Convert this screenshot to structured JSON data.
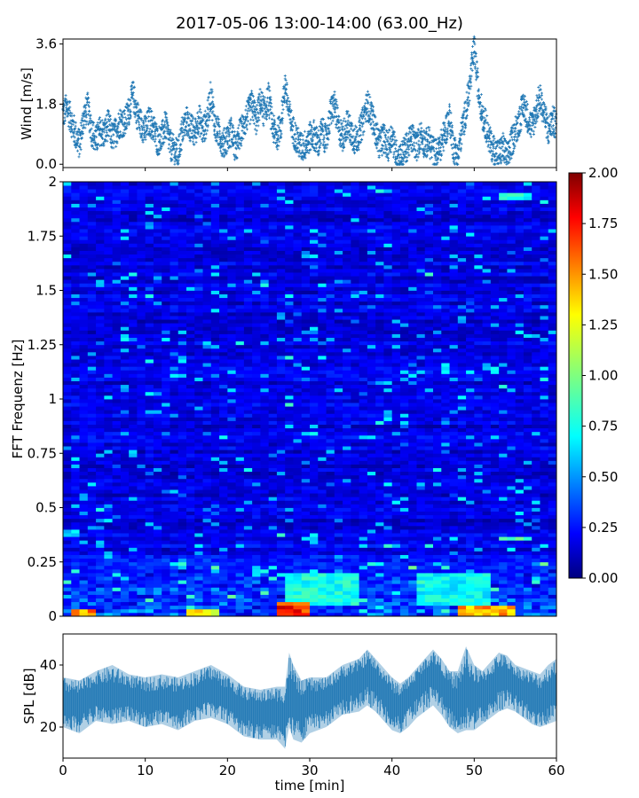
{
  "figure": {
    "title": "2017-05-06 13:00-14:00 (63.00_Hz)"
  },
  "chart_data": [
    {
      "type": "scatter",
      "panel": "wind",
      "ylabel": "Wind [m/s]",
      "xlabel": "",
      "xlim": [
        0,
        60
      ],
      "ylim": [
        -0.1,
        3.75
      ],
      "yticks": [
        "0.0",
        "1.8",
        "3.6"
      ],
      "grid": false,
      "color": "#1f77b4",
      "marker": "+",
      "description_of_series": "wind speed samples over the hour",
      "points": [
        [
          0.0,
          1.5
        ],
        [
          0.5,
          1.7
        ],
        [
          1.0,
          1.3
        ],
        [
          1.5,
          0.9
        ],
        [
          2.0,
          0.6
        ],
        [
          2.5,
          1.4
        ],
        [
          3.0,
          1.7
        ],
        [
          3.5,
          1.0
        ],
        [
          4.0,
          0.7
        ],
        [
          4.5,
          1.0
        ],
        [
          5.0,
          0.9
        ],
        [
          5.5,
          1.2
        ],
        [
          6.0,
          0.8
        ],
        [
          6.5,
          1.0
        ],
        [
          7.0,
          1.3
        ],
        [
          7.5,
          1.2
        ],
        [
          8.0,
          1.6
        ],
        [
          8.5,
          2.1
        ],
        [
          9.0,
          1.5
        ],
        [
          9.5,
          1.2
        ],
        [
          10.0,
          1.0
        ],
        [
          10.5,
          1.3
        ],
        [
          11.0,
          1.1
        ],
        [
          11.5,
          0.7
        ],
        [
          12.0,
          0.8
        ],
        [
          12.5,
          1.2
        ],
        [
          13.0,
          0.6
        ],
        [
          13.5,
          0.4
        ],
        [
          14.0,
          0.3
        ],
        [
          14.5,
          1.0
        ],
        [
          15.0,
          1.3
        ],
        [
          15.5,
          1.1
        ],
        [
          16.0,
          0.9
        ],
        [
          16.5,
          1.4
        ],
        [
          17.0,
          1.0
        ],
        [
          17.5,
          1.3
        ],
        [
          18.0,
          2.1
        ],
        [
          18.5,
          1.1
        ],
        [
          19.0,
          0.9
        ],
        [
          19.5,
          0.6
        ],
        [
          20.0,
          0.8
        ],
        [
          20.5,
          1.0
        ],
        [
          21.0,
          0.4
        ],
        [
          21.5,
          0.9
        ],
        [
          22.0,
          1.2
        ],
        [
          22.5,
          1.5
        ],
        [
          23.0,
          1.8
        ],
        [
          23.5,
          1.3
        ],
        [
          24.0,
          1.9
        ],
        [
          24.5,
          1.5
        ],
        [
          25.0,
          2.0
        ],
        [
          25.5,
          1.1
        ],
        [
          26.0,
          0.8
        ],
        [
          26.5,
          1.2
        ],
        [
          27.0,
          2.4
        ],
        [
          27.5,
          1.5
        ],
        [
          28.0,
          1.0
        ],
        [
          28.5,
          0.7
        ],
        [
          29.0,
          0.5
        ],
        [
          29.5,
          0.6
        ],
        [
          30.0,
          0.8
        ],
        [
          30.5,
          0.9
        ],
        [
          31.0,
          0.6
        ],
        [
          31.5,
          1.0
        ],
        [
          32.0,
          0.7
        ],
        [
          32.5,
          1.5
        ],
        [
          33.0,
          1.8
        ],
        [
          33.5,
          1.1
        ],
        [
          34.0,
          0.8
        ],
        [
          34.5,
          1.2
        ],
        [
          35.0,
          1.0
        ],
        [
          35.5,
          0.7
        ],
        [
          36.0,
          0.9
        ],
        [
          36.5,
          1.3
        ],
        [
          37.0,
          1.8
        ],
        [
          37.5,
          1.5
        ],
        [
          38.0,
          1.0
        ],
        [
          38.5,
          0.6
        ],
        [
          39.0,
          0.8
        ],
        [
          39.5,
          0.5
        ],
        [
          40.0,
          0.9
        ],
        [
          40.5,
          0.3
        ],
        [
          41.0,
          0.2
        ],
        [
          41.5,
          0.4
        ],
        [
          42.0,
          0.6
        ],
        [
          42.5,
          0.8
        ],
        [
          43.0,
          0.5
        ],
        [
          43.5,
          0.9
        ],
        [
          44.0,
          0.6
        ],
        [
          44.5,
          0.7
        ],
        [
          45.0,
          0.4
        ],
        [
          45.5,
          0.3
        ],
        [
          46.0,
          0.6
        ],
        [
          46.5,
          1.0
        ],
        [
          47.0,
          1.4
        ],
        [
          47.5,
          0.5
        ],
        [
          48.0,
          0.2
        ],
        [
          48.5,
          1.0
        ],
        [
          49.0,
          1.6
        ],
        [
          49.5,
          2.4
        ],
        [
          50.0,
          3.5
        ],
        [
          50.5,
          2.2
        ],
        [
          51.0,
          1.5
        ],
        [
          51.5,
          1.1
        ],
        [
          52.0,
          0.6
        ],
        [
          52.5,
          0.4
        ],
        [
          53.0,
          0.3
        ],
        [
          53.5,
          0.5
        ],
        [
          54.0,
          0.2
        ],
        [
          54.5,
          0.6
        ],
        [
          55.0,
          1.0
        ],
        [
          55.5,
          1.3
        ],
        [
          56.0,
          1.8
        ],
        [
          56.5,
          1.4
        ],
        [
          57.0,
          1.1
        ],
        [
          57.5,
          1.6
        ],
        [
          58.0,
          2.0
        ],
        [
          58.5,
          1.5
        ],
        [
          59.0,
          1.0
        ],
        [
          59.5,
          1.3
        ],
        [
          60.0,
          1.2
        ]
      ]
    },
    {
      "type": "heatmap",
      "panel": "spectrogram",
      "ylabel": "FFT Frequenz [Hz]",
      "xlabel": "",
      "xlim": [
        0,
        60
      ],
      "ylim": [
        0,
        2
      ],
      "yticks": [
        "0",
        "0.25",
        "0.5",
        "0.75",
        "1",
        "1.25",
        "1.5",
        "1.75",
        "2"
      ],
      "colormap": "jet",
      "colorbar": {
        "range": [
          0.0,
          2.0
        ],
        "ticks": [
          "0.00",
          "0.25",
          "0.50",
          "0.75",
          "1.00",
          "1.25",
          "1.50",
          "1.75",
          "2.00"
        ]
      },
      "grid": false,
      "background_level": 0.2,
      "hotspots": [
        {
          "x_range": [
            26.5,
            29.5
          ],
          "y_range": [
            0.0,
            0.06
          ],
          "value": 1.9
        },
        {
          "x_range": [
            15.5,
            18.5
          ],
          "y_range": [
            0.0,
            0.04
          ],
          "value": 1.5
        },
        {
          "x_range": [
            48.0,
            55.0
          ],
          "y_range": [
            0.0,
            0.05
          ],
          "value": 1.6
        },
        {
          "x_range": [
            1.5,
            3.5
          ],
          "y_range": [
            0.0,
            0.03
          ],
          "value": 1.7
        },
        {
          "x_range": [
            53.0,
            56.5
          ],
          "y_range": [
            0.35,
            0.37
          ],
          "value": 1.0
        },
        {
          "x_range": [
            53.5,
            57.0
          ],
          "y_range": [
            1.92,
            1.95
          ],
          "value": 0.9
        },
        {
          "x_range": [
            27.0,
            36.0
          ],
          "y_range": [
            0.05,
            0.2
          ],
          "value": 0.9
        },
        {
          "x_range": [
            43.0,
            52.0
          ],
          "y_range": [
            0.05,
            0.2
          ],
          "value": 0.85
        }
      ]
    },
    {
      "type": "line",
      "panel": "spl",
      "ylabel": "SPL [dB]",
      "xlabel": "time [min]",
      "xlim": [
        0,
        60
      ],
      "ylim": [
        10,
        50
      ],
      "yticks": [
        "20",
        "40"
      ],
      "xticks": [
        "0",
        "10",
        "20",
        "30",
        "40",
        "50",
        "60"
      ],
      "grid": false,
      "color": "#1f77b4",
      "envelope": [
        [
          0,
          28,
          20,
          36
        ],
        [
          2,
          27,
          18,
          35
        ],
        [
          4,
          31,
          22,
          38
        ],
        [
          6,
          30,
          21,
          40
        ],
        [
          8,
          30,
          22,
          37
        ],
        [
          10,
          28,
          20,
          36
        ],
        [
          12,
          29,
          21,
          37
        ],
        [
          14,
          28,
          19,
          36
        ],
        [
          16,
          30,
          22,
          38
        ],
        [
          18,
          32,
          23,
          40
        ],
        [
          20,
          29,
          21,
          37
        ],
        [
          22,
          26,
          17,
          33
        ],
        [
          24,
          25,
          16,
          32
        ],
        [
          26,
          25,
          16,
          33
        ],
        [
          27,
          24,
          13,
          33
        ],
        [
          27.5,
          32,
          20,
          44
        ],
        [
          28,
          26,
          16,
          40
        ],
        [
          29,
          27,
          15,
          35
        ],
        [
          30,
          28,
          18,
          36
        ],
        [
          32,
          29,
          20,
          36
        ],
        [
          34,
          33,
          24,
          40
        ],
        [
          36,
          35,
          25,
          42
        ],
        [
          37,
          37,
          27,
          45
        ],
        [
          38,
          35,
          25,
          42
        ],
        [
          39,
          32,
          22,
          39
        ],
        [
          40,
          28,
          19,
          36
        ],
        [
          41,
          27,
          18,
          34
        ],
        [
          42,
          30,
          20,
          36
        ],
        [
          43,
          33,
          23,
          39
        ],
        [
          44,
          36,
          25,
          42
        ],
        [
          45,
          38,
          27,
          45
        ],
        [
          46,
          35,
          24,
          42
        ],
        [
          47,
          30,
          20,
          38
        ],
        [
          48,
          27,
          18,
          38
        ],
        [
          49,
          32,
          19,
          46
        ],
        [
          50,
          30,
          19,
          40
        ],
        [
          51,
          31,
          21,
          38
        ],
        [
          52,
          33,
          23,
          41
        ],
        [
          53,
          36,
          25,
          44
        ],
        [
          54,
          36,
          26,
          43
        ],
        [
          55,
          34,
          25,
          40
        ],
        [
          56,
          32,
          23,
          39
        ],
        [
          57,
          30,
          21,
          38
        ],
        [
          58,
          29,
          20,
          37
        ],
        [
          59,
          31,
          21,
          40
        ],
        [
          60,
          32,
          22,
          42
        ]
      ]
    }
  ]
}
